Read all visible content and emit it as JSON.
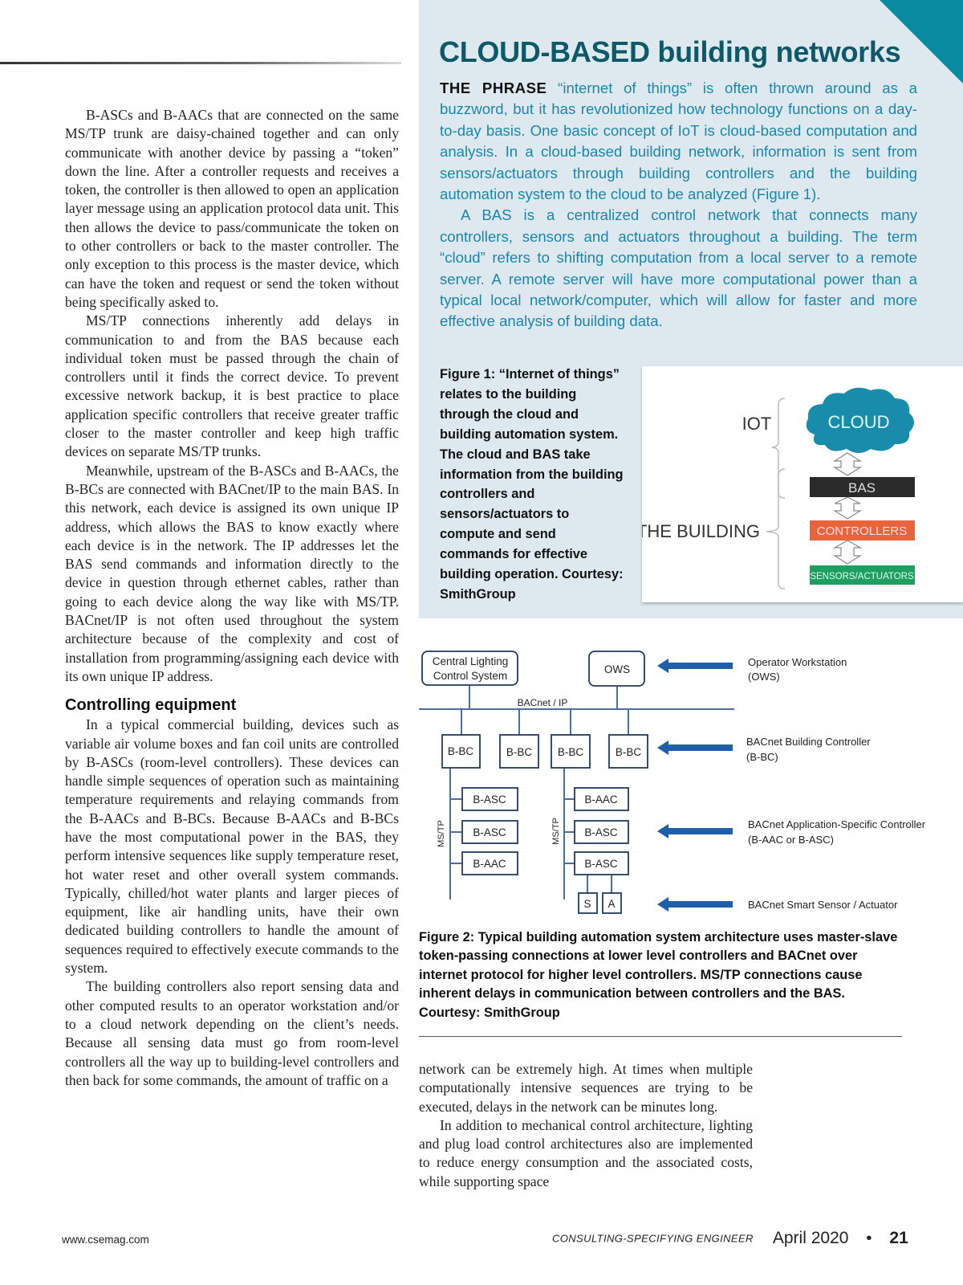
{
  "left_column": {
    "paragraphs_1": [
      "B-ASCs and B-AACs that are connected on the same MS/TP trunk are daisy-chained together and can only communicate with another device by passing a “token” down the line. After a controller requests and receives a token, the controller is then allowed to open an application layer message using an application protocol data unit. This then allows the device to pass/communicate the token on to other controllers or back to the master controller. The only exception to this process is the master device, which can have the token and request or send the token without being specifically asked to.",
      "MS/TP connections inherently add delays in communication to and from the BAS because each individual token must be passed through the chain of controllers until it finds the correct device. To prevent excessive network backup, it is best practice to place application specific controllers that receive greater traffic closer to the master controller and keep high traffic devices on separate MS/TP trunks.",
      "Meanwhile, upstream of the B-ASCs and B-AACs, the B-BCs are connected with BACnet/IP to the main BAS. In this network, each device is assigned its own unique IP address, which allows the BAS to know exactly where each device is in the network. The IP addresses let the BAS send commands and information directly to the device in question through ethernet cables, rather than going to each device along the way like with MS/TP. BACnet/IP is not often used throughout the system architecture because of the complexity and cost of installation from programming/assigning each device with its own unique IP address."
    ],
    "heading": "Controlling equipment",
    "paragraphs_2": [
      "In a typical commercial building, devices such as variable air volume boxes and fan coil units are controlled by B-ASCs (room-level controllers). These devices can handle simple sequences of operation such as maintaining temperature requirements and relaying commands from the B-AACs and B-BCs. Because B-AACs and B-BCs have the most computational power in the BAS, they perform intensive sequences like supply temperature reset, hot water reset and other overall system commands. Typically, chilled/hot water plants and larger pieces of equipment, like air handling units, have their own dedicated building controllers to handle the amount of sequences required to effectively execute commands to the system.",
      "The building controllers also report sensing data and other computed results to an operator workstation and/or to a cloud network depending on the client’s needs. Because all sensing data must go from room-level controllers all the way up to building-level controllers and then back for some commands, the amount of traffic on a"
    ]
  },
  "sidebar": {
    "title": "CLOUD-BASED building networks",
    "lead": "THE PHRASE",
    "p1_rest": " “internet of things” is often thrown around as a buzzword, but it has revolutionized how technology functions on a day-to-day basis. One basic concept of IoT is cloud-based computation and analysis. In a cloud-based building network, information is sent from sensors/actuators through building controllers and the building automation system to the cloud to be analyzed (Figure 1).",
    "p2": "A BAS is a centralized control network that connects many controllers, sensors and actuators throughout a building. The term “cloud” refers to shifting computation from a local server to a remote server. A remote server will have more computational power than a typical local network/computer, which will allow for faster and more effective analysis of building data.",
    "figure1_caption": "Figure 1: “Internet of things” relates to the building through the cloud and building automation system. The cloud and BAS take information from the building controllers and sensors/actuators to compute and send commands for effective building operation. Courtesy: SmithGroup",
    "figure1": {
      "iot_label": "IOT",
      "building_label": "THE BUILDING",
      "cloud": "CLOUD",
      "bas": "BAS",
      "controllers": "CONTROLLERS",
      "sensors": "SENSORS/ACTUATORS"
    },
    "colors": {
      "panel": "#dde9ef",
      "title": "#0c5a69",
      "body": "#1a86ad",
      "cloud": "#1a8cab",
      "bas": "#2b2b2b",
      "controllers": "#e8643a",
      "sensors": "#1f9e62"
    }
  },
  "figure2": {
    "central_lighting": [
      "Central Lighting",
      "Control System"
    ],
    "ows": "OWS",
    "bus_label": "BACnet / IP",
    "bbc": [
      "B-BC",
      "B-BC",
      "B-BC",
      "B-BC"
    ],
    "trunk_label": "MS/TP",
    "left_trunk": [
      "B-ASC",
      "B-ASC",
      "B-AAC"
    ],
    "right_trunk": [
      "B-AAC",
      "B-ASC",
      "B-ASC"
    ],
    "sensor": "S",
    "actuator": "A",
    "legend": [
      [
        "Operator Workstation",
        "(OWS)"
      ],
      [
        "BACnet Building Controller",
        "(B-BC)"
      ],
      [
        "BACnet Application-Specific Controller",
        "(B-AAC or B-ASC)"
      ],
      [
        "BACnet Smart Sensor / Actuator"
      ]
    ],
    "caption": "Figure 2: Typical building automation system architecture uses master-slave token-passing connections at lower level controllers and BACnet over internet protocol for higher level controllers. MS/TP connections cause inherent delays in communication between controllers and the BAS. Courtesy: SmithGroup",
    "arrow_color": "#1f5fa8"
  },
  "right_column": {
    "paragraphs": [
      "network can be extremely high. At times when multiple computationally intensive sequences are trying to be executed, delays in the network can be minutes long.",
      "In addition to mechanical control architecture, lighting and plug load control architectures also are implemented to reduce energy consumption and the associated costs, while supporting space"
    ]
  },
  "footer": {
    "website": "www.csemag.com",
    "magazine": "CONSULTING-SPECIFYING ENGINEER",
    "date": "April 2020",
    "bullet": "•",
    "page": "21"
  }
}
